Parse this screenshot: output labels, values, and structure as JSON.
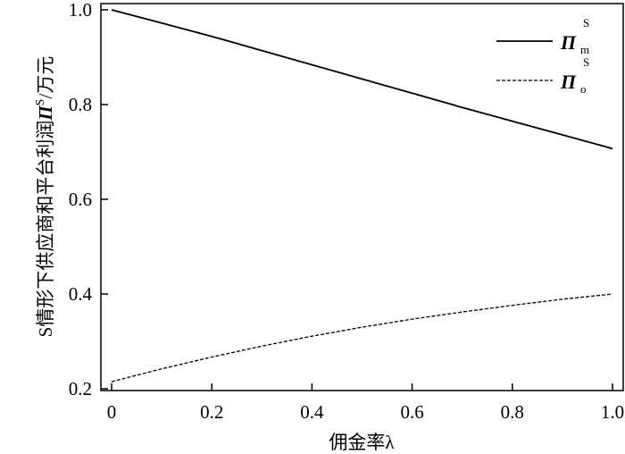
{
  "chart_data": {
    "type": "line",
    "xlabel": "佣金率λ",
    "ylabel": "S情形下供应商和平台利润Π^S/万元",
    "ylabel_parts": {
      "prefix": "S情形下供应商和平台利润",
      "symbol": "Π",
      "superscript": "S",
      "suffix": "/万元"
    },
    "xlim": [
      0,
      1
    ],
    "ylim": [
      0.2,
      1.0
    ],
    "xticks": [
      "0",
      "0.2",
      "0.4",
      "0.6",
      "0.8",
      "1.0"
    ],
    "xtick_values": [
      0,
      0.2,
      0.4,
      0.6,
      0.8,
      1.0
    ],
    "yticks": [
      "0.2",
      "0.4",
      "0.6",
      "0.8",
      "1.0"
    ],
    "ytick_values": [
      0.2,
      0.4,
      0.6,
      0.8,
      1.0
    ],
    "grid": false,
    "legend_position": "top-right",
    "series": [
      {
        "name": "Π_m^S",
        "symbol": "Π",
        "superscript": "S",
        "subscript": "m",
        "style": "solid",
        "x": [
          0,
          0.1,
          0.2,
          0.3,
          0.4,
          0.5,
          0.6,
          0.7,
          0.8,
          0.9,
          1.0
        ],
        "values": [
          1.0,
          0.972,
          0.944,
          0.914,
          0.884,
          0.854,
          0.824,
          0.794,
          0.765,
          0.736,
          0.707
        ]
      },
      {
        "name": "Π_o^S",
        "symbol": "Π",
        "superscript": "S",
        "subscript": "o",
        "style": "dashed",
        "x": [
          0,
          0.1,
          0.2,
          0.3,
          0.4,
          0.5,
          0.6,
          0.7,
          0.8,
          0.9,
          1.0
        ],
        "values": [
          0.215,
          0.242,
          0.267,
          0.29,
          0.311,
          0.33,
          0.347,
          0.362,
          0.376,
          0.389,
          0.4
        ]
      }
    ]
  }
}
